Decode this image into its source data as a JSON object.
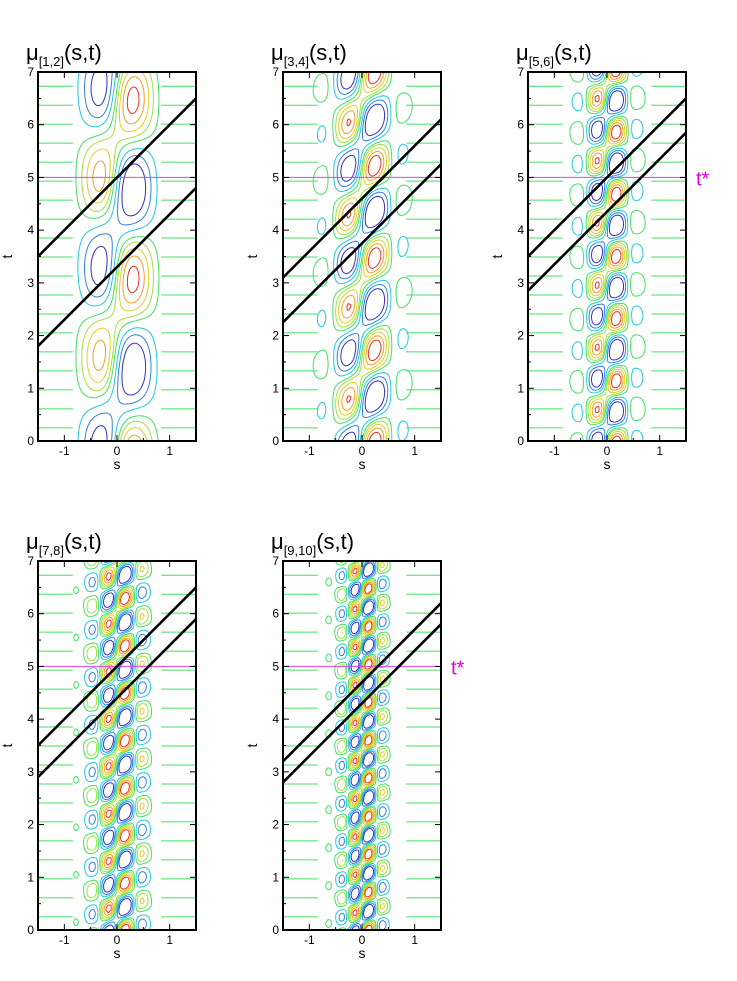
{
  "figure": {
    "annotation_label": "t*",
    "colors": {
      "annotation": "#e000e0",
      "t_star_line": "#e040e0",
      "characteristic": "#000000",
      "contour_positive": [
        "#40e060",
        "#a0e040",
        "#e0d020",
        "#f0a020",
        "#e03020"
      ],
      "contour_negative": [
        "#20c8e0",
        "#3080e0",
        "#3030c0"
      ]
    }
  },
  "chart_data": [
    {
      "type": "contour",
      "title_base": "μ",
      "title_subscript": "[1,2]",
      "title_args": "(s,t)",
      "xlabel": "s",
      "ylabel": "t",
      "xlim": [
        -1.5,
        1.5
      ],
      "ylim": [
        0,
        7
      ],
      "xticks": [
        -1,
        0,
        1
      ],
      "yticks": [
        0,
        1,
        2,
        3,
        4,
        5,
        6,
        7
      ],
      "t_star": 5,
      "show_t_star_label": false,
      "wave": {
        "k": 1.6,
        "period": 3.4,
        "phase": 0.4,
        "width": 0.45,
        "drift": 0
      },
      "characteristic_lines": [
        {
          "slope": 1.0,
          "t0": 5.0
        },
        {
          "slope": 1.0,
          "t0": 3.3
        }
      ]
    },
    {
      "type": "contour",
      "title_base": "μ",
      "title_subscript": "[3,4]",
      "title_args": "(s,t)",
      "xlabel": "s",
      "ylabel": "t",
      "xlim": [
        -1.5,
        1.5
      ],
      "ylim": [
        0,
        7
      ],
      "xticks": [
        -1,
        0,
        1
      ],
      "yticks": [
        0,
        1,
        2,
        3,
        4,
        5,
        6,
        7
      ],
      "t_star": 5,
      "show_t_star_label": false,
      "wave": {
        "k": 2.4,
        "period": 1.75,
        "phase": 0.2,
        "width": 0.42,
        "drift": 0.35
      },
      "characteristic_lines": [
        {
          "slope": 1.0,
          "t0": 4.6
        },
        {
          "slope": 1.0,
          "t0": 3.75
        }
      ]
    },
    {
      "type": "contour",
      "title_base": "μ",
      "title_subscript": "[5,6]",
      "title_args": "(s,t)",
      "xlabel": "s",
      "ylabel": "t",
      "xlim": [
        -1.5,
        1.5
      ],
      "ylim": [
        0,
        7
      ],
      "xticks": [
        -1,
        0,
        1
      ],
      "yticks": [
        0,
        1,
        2,
        3,
        4,
        5,
        6,
        7
      ],
      "t_star": 5,
      "show_t_star_label": true,
      "wave": {
        "k": 3.4,
        "period": 1.18,
        "phase": 0.1,
        "width": 0.33,
        "drift": 0.1
      },
      "characteristic_lines": [
        {
          "slope": 1.0,
          "t0": 5.0
        },
        {
          "slope": 1.0,
          "t0": 4.35
        }
      ]
    },
    {
      "type": "contour",
      "title_base": "μ",
      "title_subscript": "[7,8]",
      "title_args": "(s,t)",
      "xlabel": "s",
      "ylabel": "t",
      "xlim": [
        -1.5,
        1.5
      ],
      "ylim": [
        0,
        7
      ],
      "xticks": [
        -1,
        0,
        1
      ],
      "yticks": [
        0,
        1,
        2,
        3,
        4,
        5,
        6,
        7
      ],
      "t_star": 5,
      "show_t_star_label": false,
      "wave": {
        "k": 4.2,
        "period": 0.9,
        "phase": 0.2,
        "width": 0.36,
        "drift": 0.3
      },
      "characteristic_lines": [
        {
          "slope": 1.0,
          "t0": 5.0
        },
        {
          "slope": 1.0,
          "t0": 4.4
        }
      ]
    },
    {
      "type": "contour",
      "title_base": "μ",
      "title_subscript": "[9,10]",
      "title_args": "(s,t)",
      "xlabel": "s",
      "ylabel": "t",
      "xlim": [
        -1.5,
        1.5
      ],
      "ylim": [
        0,
        7
      ],
      "xticks": [
        -1,
        0,
        1
      ],
      "yticks": [
        0,
        1,
        2,
        3,
        4,
        5,
        6,
        7
      ],
      "t_star": 5,
      "show_t_star_label": true,
      "wave": {
        "k": 5.2,
        "period": 0.72,
        "phase": 0.15,
        "width": 0.3,
        "drift": 0.3
      },
      "characteristic_lines": [
        {
          "slope": 1.0,
          "t0": 4.7
        },
        {
          "slope": 1.0,
          "t0": 4.3
        }
      ]
    }
  ]
}
